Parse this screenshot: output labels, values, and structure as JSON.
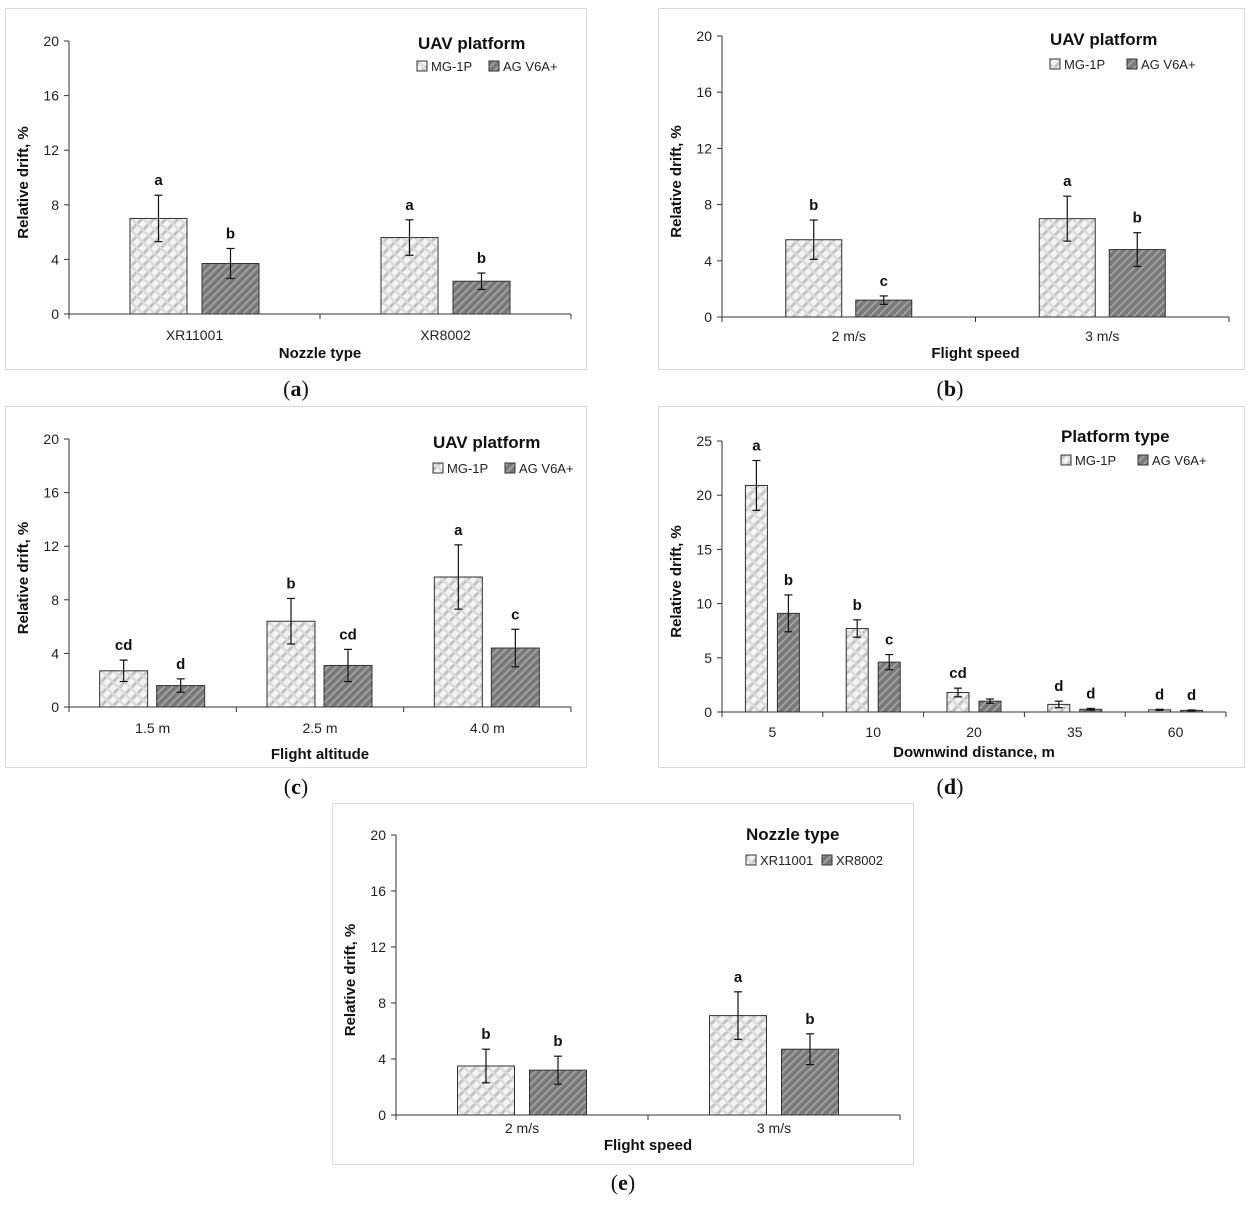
{
  "captions": [
    "a",
    "b",
    "c",
    "d",
    "e"
  ],
  "colors": {
    "light_bar": "#f4f4f4",
    "dark_bar": "#7a7a7a",
    "axis": "#333333",
    "border": "#d9d9d9"
  },
  "chart_data": [
    {
      "type": "bar",
      "xlabel": "Nozzle type",
      "ylabel": "Relative drift, %",
      "legend_title": "UAV platform",
      "legend_position": "top-right",
      "ylim": [
        0,
        20
      ],
      "yticks": [
        0,
        4,
        8,
        12,
        16,
        20
      ],
      "categories": [
        "XR11001",
        "XR8002"
      ],
      "series": [
        {
          "name": "MG-1P",
          "values": [
            7.0,
            5.6
          ],
          "errors": [
            1.7,
            1.3
          ],
          "letters": [
            "a",
            "a"
          ]
        },
        {
          "name": "AG V6A+",
          "values": [
            3.7,
            2.4
          ],
          "errors": [
            1.1,
            0.6
          ],
          "letters": [
            "b",
            "b"
          ]
        }
      ]
    },
    {
      "type": "bar",
      "xlabel": "Flight speed",
      "ylabel": "Relative drift, %",
      "legend_title": "UAV platform",
      "legend_position": "top-right",
      "ylim": [
        0,
        20
      ],
      "yticks": [
        0,
        4,
        8,
        12,
        16,
        20
      ],
      "categories": [
        "2 m/s",
        "3 m/s"
      ],
      "series": [
        {
          "name": "MG-1P",
          "values": [
            5.5,
            7.0
          ],
          "errors": [
            1.4,
            1.6
          ],
          "letters": [
            "b",
            "a"
          ]
        },
        {
          "name": "AG V6A+",
          "values": [
            1.2,
            4.8
          ],
          "errors": [
            0.3,
            1.2
          ],
          "letters": [
            "c",
            "b"
          ]
        }
      ]
    },
    {
      "type": "bar",
      "xlabel": "Flight altitude",
      "ylabel": "Relative drift, %",
      "legend_title": "UAV platform",
      "legend_position": "top-right",
      "ylim": [
        0,
        20
      ],
      "yticks": [
        0,
        4,
        8,
        12,
        16,
        20
      ],
      "categories": [
        "1.5 m",
        "2.5 m",
        "4.0 m"
      ],
      "series": [
        {
          "name": "MG-1P",
          "values": [
            2.7,
            6.4,
            9.7
          ],
          "errors": [
            0.8,
            1.7,
            2.4
          ],
          "letters": [
            "cd",
            "b",
            "a"
          ]
        },
        {
          "name": "AG V6A+",
          "values": [
            1.6,
            3.1,
            4.4
          ],
          "errors": [
            0.5,
            1.2,
            1.4
          ],
          "letters": [
            "d",
            "cd",
            "c"
          ]
        }
      ]
    },
    {
      "type": "bar",
      "xlabel": "Downwind distance, m",
      "ylabel": "Relative drift, %",
      "legend_title": "Platform type",
      "legend_position": "top-right",
      "ylim": [
        0,
        25
      ],
      "yticks": [
        0,
        5,
        10,
        15,
        20,
        25
      ],
      "categories": [
        "5",
        "10",
        "20",
        "35",
        "60"
      ],
      "series": [
        {
          "name": "MG-1P",
          "values": [
            20.9,
            7.7,
            1.8,
            0.7,
            0.2
          ],
          "errors": [
            2.3,
            0.8,
            0.4,
            0.3,
            0.05
          ],
          "letters": [
            "a",
            "b",
            "cd",
            "d",
            "d"
          ]
        },
        {
          "name": "AG V6A+",
          "values": [
            9.1,
            4.6,
            1.0,
            0.25,
            0.15
          ],
          "errors": [
            1.7,
            0.7,
            0.2,
            0.08,
            0.04
          ],
          "letters": [
            "b",
            "c",
            "",
            "d",
            "d"
          ]
        }
      ]
    },
    {
      "type": "bar",
      "xlabel": "Flight speed",
      "ylabel": "Relative drift, %",
      "legend_title": "Nozzle type",
      "legend_position": "top-right",
      "ylim": [
        0,
        20
      ],
      "yticks": [
        0,
        4,
        8,
        12,
        16,
        20
      ],
      "categories": [
        "2 m/s",
        "3 m/s"
      ],
      "series": [
        {
          "name": "XR11001",
          "values": [
            3.5,
            7.1
          ],
          "errors": [
            1.2,
            1.7
          ],
          "letters": [
            "b",
            "a"
          ]
        },
        {
          "name": "XR8002",
          "values": [
            3.2,
            4.7
          ],
          "errors": [
            1.0,
            1.1
          ],
          "letters": [
            "b",
            "b"
          ]
        }
      ]
    }
  ]
}
